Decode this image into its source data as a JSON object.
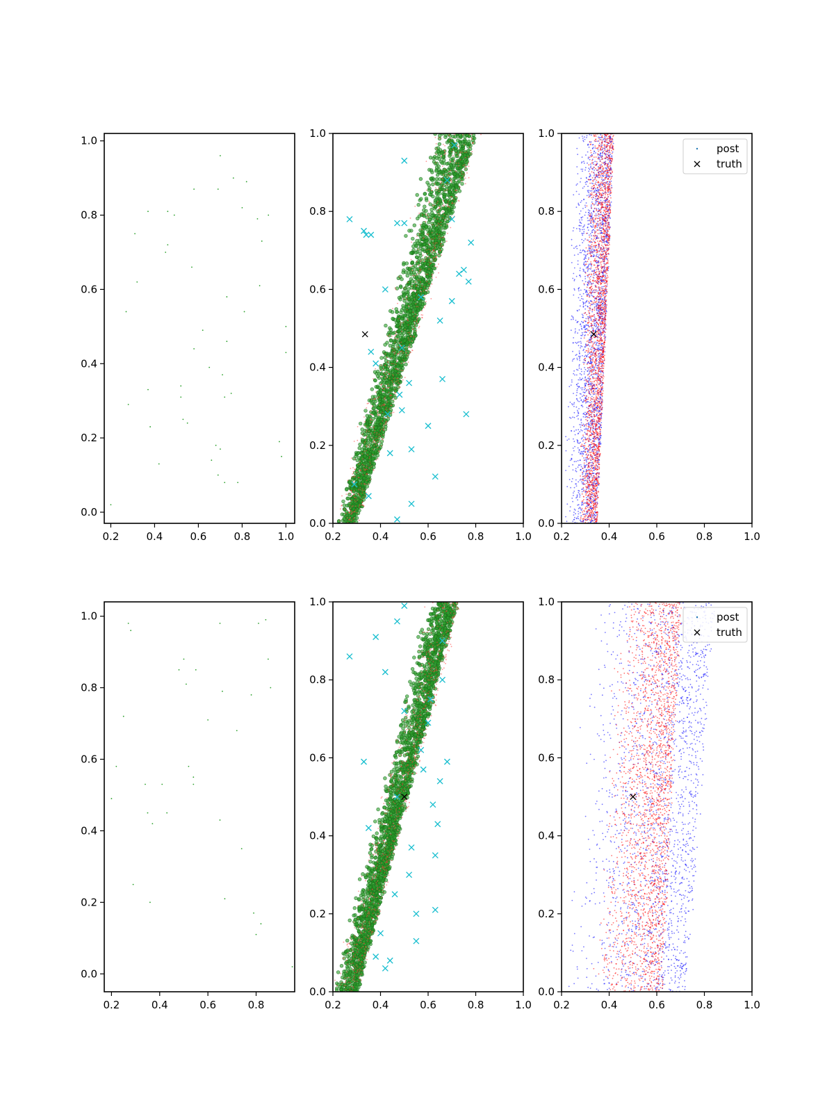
{
  "chart_data": [
    {
      "type": "scatter",
      "row": 1,
      "col": 1,
      "xlim": [
        0.17,
        1.04
      ],
      "ylim": [
        -0.03,
        1.02
      ],
      "xticks": [
        0.2,
        0.4,
        0.6,
        0.8,
        1.0
      ],
      "xticklabels": [
        "0.2",
        "0.4",
        "0.6",
        "0.8",
        "1.0"
      ],
      "yticks": [
        0.0,
        0.2,
        0.4,
        0.6,
        0.8,
        1.0
      ],
      "yticklabels": [
        "0.0",
        "0.2",
        "0.4",
        "0.6",
        "0.8",
        "1.0"
      ],
      "legend": null,
      "series": [
        {
          "color": "#2ca02c",
          "marker": "point",
          "x": [
            0.2,
            0.27,
            0.28,
            0.31,
            0.32,
            0.37,
            0.37,
            0.38,
            0.42,
            0.45,
            0.46,
            0.46,
            0.49,
            0.52,
            0.52,
            0.53,
            0.55,
            0.57,
            0.58,
            0.58,
            0.62,
            0.65,
            0.66,
            0.68,
            0.69,
            0.69,
            0.7,
            0.7,
            0.71,
            0.72,
            0.72,
            0.73,
            0.73,
            0.75,
            0.76,
            0.78,
            0.8,
            0.81,
            0.82,
            0.87,
            0.88,
            0.89,
            0.92,
            0.97,
            0.98,
            1.0,
            1.0
          ],
          "y": [
            0.02,
            0.54,
            0.29,
            0.75,
            0.62,
            0.81,
            0.33,
            0.23,
            0.13,
            0.7,
            0.81,
            0.72,
            0.8,
            0.34,
            0.31,
            0.25,
            0.24,
            0.66,
            0.44,
            0.87,
            0.49,
            0.39,
            0.14,
            0.18,
            0.1,
            0.87,
            0.17,
            0.96,
            0.37,
            0.31,
            0.08,
            0.58,
            0.46,
            0.32,
            0.9,
            0.08,
            0.82,
            0.54,
            0.89,
            0.79,
            0.61,
            0.73,
            0.8,
            0.19,
            0.15,
            0.5,
            0.43
          ]
        }
      ]
    },
    {
      "type": "scatter",
      "row": 1,
      "col": 2,
      "xlim": [
        0.2,
        1.0
      ],
      "ylim": [
        0.0,
        1.0
      ],
      "xticks": [
        0.2,
        0.4,
        0.6,
        0.8,
        1.0
      ],
      "xticklabels": [
        "0.2",
        "0.4",
        "0.6",
        "0.8",
        "1.0"
      ],
      "yticks": [
        0.0,
        0.2,
        0.4,
        0.6,
        0.8,
        1.0
      ],
      "yticklabels": [
        "0.0",
        "0.2",
        "0.4",
        "0.6",
        "0.8",
        "1.0"
      ],
      "legend": null,
      "clouds": [
        {
          "color": "#2ca02c",
          "opacity": 0.6,
          "stroke": "#1a6b1a",
          "radius": 2.4,
          "count": 2200,
          "x_start": [
            0.22,
            0.29
          ],
          "x_end": [
            0.62,
            0.8
          ],
          "spread": 0.085,
          "seed": 11
        },
        {
          "color": "#ff4040",
          "opacity": 0.55,
          "radius": 0.9,
          "count": 700,
          "x_start": [
            0.2,
            0.3
          ],
          "x_end": [
            0.62,
            0.82
          ],
          "spread": 0.1,
          "seed": 12
        }
      ],
      "series": [
        {
          "color": "#17becf",
          "marker": "x",
          "x": [
            0.27,
            0.33,
            0.35,
            0.29,
            0.36,
            0.38,
            0.42,
            0.43,
            0.44,
            0.47,
            0.48,
            0.49,
            0.5,
            0.5,
            0.52,
            0.53,
            0.47,
            0.36,
            0.34,
            0.63,
            0.66,
            0.7,
            0.7,
            0.73,
            0.75,
            0.78,
            0.77,
            0.71,
            0.76,
            0.53,
            0.6,
            0.65,
            0.49,
            0.57,
            0.68
          ],
          "y": [
            0.78,
            0.75,
            0.07,
            0.1,
            0.44,
            0.41,
            0.6,
            0.28,
            0.18,
            0.77,
            0.33,
            0.29,
            0.77,
            0.93,
            0.36,
            0.19,
            0.01,
            0.74,
            0.74,
            0.12,
            0.37,
            0.57,
            0.78,
            0.64,
            0.65,
            0.72,
            0.62,
            0.97,
            0.28,
            0.05,
            0.25,
            0.52,
            0.45,
            0.58,
            0.88
          ]
        },
        {
          "color": "#000000",
          "marker": "x",
          "x": [
            0.335
          ],
          "y": [
            0.485
          ]
        }
      ]
    },
    {
      "type": "scatter",
      "row": 1,
      "col": 3,
      "xlim": [
        0.2,
        1.0
      ],
      "ylim": [
        0.0,
        1.0
      ],
      "xticks": [
        0.2,
        0.4,
        0.6,
        0.8,
        1.0
      ],
      "xticklabels": [
        "0.2",
        "0.4",
        "0.6",
        "0.8",
        "1.0"
      ],
      "yticks": [
        0.0,
        0.2,
        0.4,
        0.6,
        0.8,
        1.0
      ],
      "yticklabels": [
        "0.0",
        "0.2",
        "0.4",
        "0.6",
        "0.8",
        "1.0"
      ],
      "legend": {
        "placement": "top-right",
        "entries": [
          {
            "label": "post",
            "marker": "dot",
            "color": "#1f77b4"
          },
          {
            "label": "truth",
            "marker": "x",
            "color": "#000000"
          }
        ]
      },
      "clouds": [
        {
          "color": "#0000ff",
          "opacity": 0.55,
          "radius": 0.9,
          "count": 2300,
          "x_start": [
            0.21,
            0.35
          ],
          "x_end": [
            0.25,
            0.42
          ],
          "spread": 0.02,
          "seed": 21
        },
        {
          "color": "#ff0000",
          "opacity": 0.55,
          "radius": 0.9,
          "count": 2300,
          "x_start": [
            0.27,
            0.35
          ],
          "x_end": [
            0.31,
            0.42
          ],
          "spread": 0.012,
          "seed": 22
        }
      ],
      "series": [
        {
          "color": "#000000",
          "marker": "x",
          "x": [
            0.335
          ],
          "y": [
            0.485
          ]
        }
      ]
    },
    {
      "type": "scatter",
      "row": 2,
      "col": 1,
      "xlim": [
        0.17,
        0.96
      ],
      "ylim": [
        -0.05,
        1.04
      ],
      "xticks": [
        0.2,
        0.4,
        0.6,
        0.8
      ],
      "xticklabels": [
        "0.2",
        "0.4",
        "0.6",
        "0.8"
      ],
      "yticks": [
        0.0,
        0.2,
        0.4,
        0.6,
        0.8,
        1.0
      ],
      "yticklabels": [
        "0.0",
        "0.2",
        "0.4",
        "0.6",
        "0.8",
        "1.0"
      ],
      "legend": null,
      "series": [
        {
          "color": "#2ca02c",
          "marker": "point",
          "x": [
            0.2,
            0.22,
            0.25,
            0.27,
            0.28,
            0.29,
            0.34,
            0.35,
            0.36,
            0.37,
            0.41,
            0.43,
            0.48,
            0.5,
            0.51,
            0.52,
            0.54,
            0.54,
            0.55,
            0.6,
            0.65,
            0.65,
            0.66,
            0.67,
            0.72,
            0.74,
            0.78,
            0.79,
            0.8,
            0.81,
            0.82,
            0.84,
            0.85,
            0.86,
            0.95
          ],
          "y": [
            0.49,
            0.58,
            0.72,
            0.98,
            0.96,
            0.25,
            0.53,
            0.45,
            0.2,
            0.42,
            0.53,
            0.45,
            0.85,
            0.88,
            0.81,
            0.58,
            0.55,
            0.53,
            0.85,
            0.71,
            0.43,
            0.98,
            0.79,
            0.21,
            0.68,
            0.35,
            0.78,
            0.17,
            0.11,
            0.98,
            0.14,
            0.99,
            0.88,
            0.8,
            0.02
          ]
        }
      ]
    },
    {
      "type": "scatter",
      "row": 2,
      "col": 2,
      "xlim": [
        0.2,
        1.0
      ],
      "ylim": [
        0.0,
        1.0
      ],
      "xticks": [
        0.2,
        0.4,
        0.6,
        0.8,
        1.0
      ],
      "xticklabels": [
        "0.2",
        "0.4",
        "0.6",
        "0.8",
        "1.0"
      ],
      "yticks": [
        0.0,
        0.2,
        0.4,
        0.6,
        0.8,
        1.0
      ],
      "yticklabels": [
        "0.0",
        "0.2",
        "0.4",
        "0.6",
        "0.8",
        "1.0"
      ],
      "legend": null,
      "clouds": [
        {
          "color": "#2ca02c",
          "opacity": 0.6,
          "stroke": "#1a6b1a",
          "radius": 2.4,
          "count": 2300,
          "x_start": [
            0.2,
            0.3
          ],
          "x_end": [
            0.6,
            0.72
          ],
          "spread": 0.07,
          "seed": 31
        },
        {
          "color": "#ff4040",
          "opacity": 0.55,
          "radius": 0.9,
          "count": 700,
          "x_start": [
            0.2,
            0.3
          ],
          "x_end": [
            0.6,
            0.74
          ],
          "spread": 0.09,
          "seed": 32
        }
      ],
      "series": [
        {
          "color": "#17becf",
          "marker": "x",
          "x": [
            0.27,
            0.33,
            0.38,
            0.42,
            0.47,
            0.5,
            0.53,
            0.55,
            0.58,
            0.6,
            0.62,
            0.63,
            0.64,
            0.65,
            0.66,
            0.68,
            0.38,
            0.42,
            0.44,
            0.35,
            0.4,
            0.46,
            0.5,
            0.55,
            0.57,
            0.61,
            0.63,
            0.66,
            0.52,
            0.47
          ],
          "y": [
            0.86,
            0.59,
            0.91,
            0.82,
            0.95,
            0.99,
            0.37,
            0.13,
            0.57,
            0.69,
            0.48,
            0.21,
            0.43,
            0.54,
            0.8,
            0.59,
            0.09,
            0.06,
            0.08,
            0.42,
            0.15,
            0.25,
            0.72,
            0.2,
            0.62,
            0.75,
            0.35,
            0.9,
            0.3,
            0.5
          ]
        },
        {
          "color": "#000000",
          "marker": "x",
          "x": [
            0.5
          ],
          "y": [
            0.5
          ]
        }
      ]
    },
    {
      "type": "scatter",
      "row": 2,
      "col": 3,
      "xlim": [
        0.2,
        1.0
      ],
      "ylim": [
        0.0,
        1.0
      ],
      "xticks": [
        0.2,
        0.4,
        0.6,
        0.8,
        1.0
      ],
      "xticklabels": [
        "0.2",
        "0.4",
        "0.6",
        "0.8",
        "1.0"
      ],
      "yticks": [
        0.0,
        0.2,
        0.4,
        0.6,
        0.8,
        1.0
      ],
      "yticklabels": [
        "0.0",
        "0.2",
        "0.4",
        "0.6",
        "0.8",
        "1.0"
      ],
      "legend": {
        "placement": "top-right",
        "entries": [
          {
            "label": "post",
            "marker": "dot",
            "color": "#1f77b4"
          },
          {
            "label": "truth",
            "marker": "x",
            "color": "#000000"
          }
        ]
      },
      "clouds": [
        {
          "color": "#0000ff",
          "opacity": 0.55,
          "radius": 0.9,
          "count": 2000,
          "x_start": [
            0.2,
            0.72
          ],
          "x_end": [
            0.32,
            0.84
          ],
          "spread": 0.07,
          "seed": 41
        },
        {
          "color": "#ff0000",
          "opacity": 0.55,
          "radius": 0.9,
          "count": 2300,
          "x_start": [
            0.32,
            0.62
          ],
          "x_end": [
            0.44,
            0.7
          ],
          "spread": 0.045,
          "seed": 42
        }
      ],
      "series": [
        {
          "color": "#000000",
          "marker": "x",
          "x": [
            0.5
          ],
          "y": [
            0.5
          ]
        }
      ]
    }
  ]
}
